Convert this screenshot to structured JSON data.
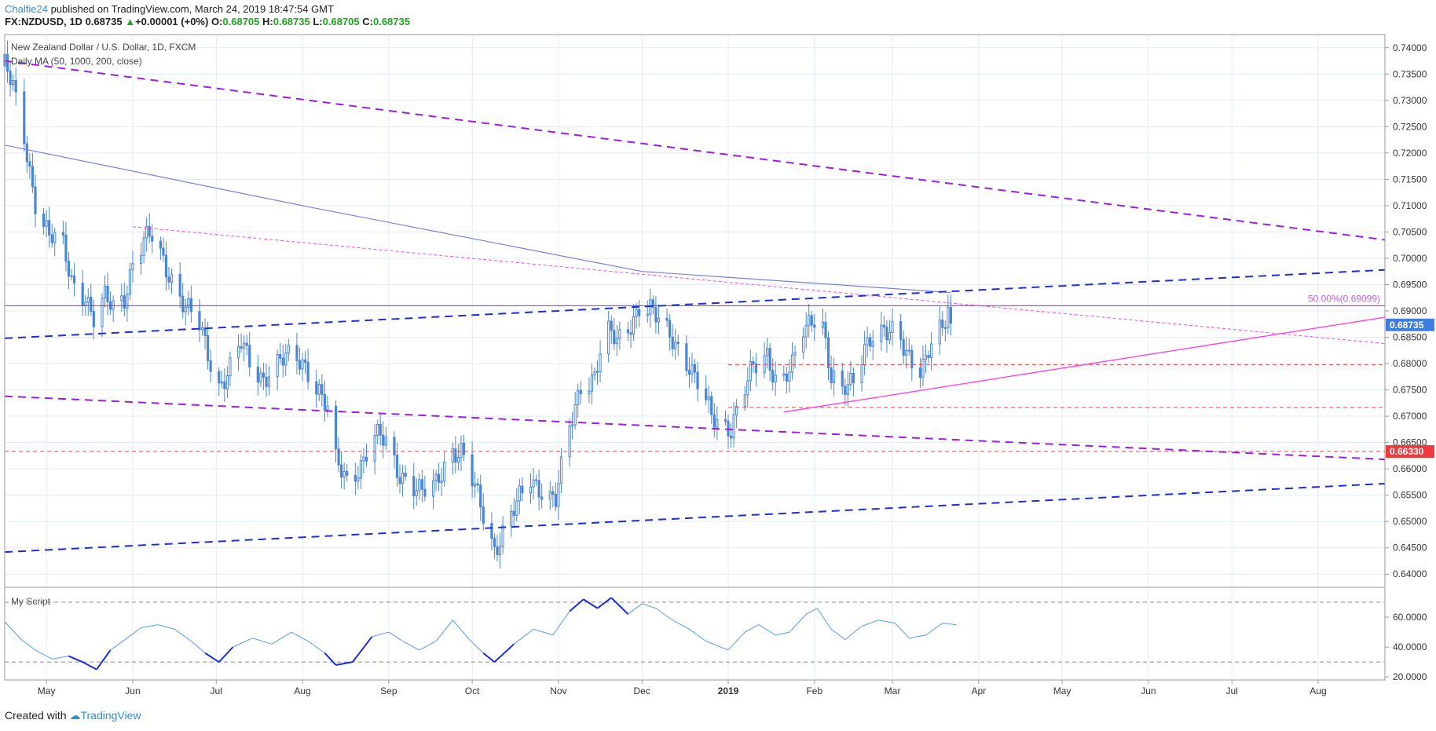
{
  "header": {
    "author": "Chalfie24",
    "published_text": "published on TradingView.com, March 24, 2019 18:47:54 GMT",
    "symbol": "FX:NZDUSD, 1D",
    "last": "0.68735",
    "change": "+0.00001 (+0%)",
    "o_label": "O:",
    "o": "0.68705",
    "h_label": "H:",
    "h": "0.68735",
    "l_label": "L:",
    "l": "0.68705",
    "c_label": "C:",
    "c": "0.68735"
  },
  "legend": {
    "title": "New Zealand Dollar / U.S. Dollar, 1D, FXCM",
    "ma": "Daily MA (50, 1000, 200, close)",
    "script": "My Script"
  },
  "footer": {
    "created_with": "Created with",
    "brand": "TradingView"
  },
  "colors": {
    "candle": "#4a86d8",
    "purple_dash": "#9b1ee6",
    "blue_dash": "#1a2fd8",
    "pink": "#ff44dd",
    "red_dash": "#ef4040",
    "ma_line": "#7b7fe6",
    "fib_line": "#9b1ee6"
  },
  "chart_data": [
    {
      "type": "candlestick",
      "title": "New Zealand Dollar / U.S. Dollar, 1D, FXCM",
      "ylim": [
        0.6375,
        0.7425
      ],
      "y_ticks": [
        "0.74000",
        "0.73500",
        "0.73000",
        "0.72500",
        "0.72000",
        "0.71500",
        "0.71000",
        "0.70500",
        "0.70000",
        "0.69500",
        "0.69000",
        "0.68500",
        "0.68000",
        "0.67500",
        "0.67000",
        "0.66500",
        "0.66000",
        "0.65500",
        "0.65000",
        "0.64500",
        "0.64000"
      ],
      "x_labels": [
        "May",
        "Jun",
        "Jul",
        "Aug",
        "Sep",
        "Oct",
        "Nov",
        "Dec",
        "2019",
        "Feb",
        "Mar",
        "Apr",
        "May",
        "Jun",
        "Jul",
        "Aug"
      ],
      "x_range": [
        "2018-04-16",
        "2019-08-25"
      ],
      "price_path": [
        [
          "2018-04-16",
          0.7365
        ],
        [
          "2018-04-19",
          0.732
        ],
        [
          "2018-04-23",
          0.723
        ],
        [
          "2018-04-27",
          0.711
        ],
        [
          "2018-05-02",
          0.704
        ],
        [
          "2018-05-07",
          0.702
        ],
        [
          "2018-05-10",
          0.696
        ],
        [
          "2018-05-15",
          0.693
        ],
        [
          "2018-05-18",
          0.688
        ],
        [
          "2018-05-22",
          0.692
        ],
        [
          "2018-05-25",
          0.691
        ],
        [
          "2018-05-29",
          0.693
        ],
        [
          "2018-06-01",
          0.699
        ],
        [
          "2018-06-05",
          0.703
        ],
        [
          "2018-06-08",
          0.704
        ],
        [
          "2018-06-13",
          0.6985
        ],
        [
          "2018-06-16",
          0.6955
        ],
        [
          "2018-06-20",
          0.6905
        ],
        [
          "2018-06-25",
          0.687
        ],
        [
          "2018-06-28",
          0.682
        ],
        [
          "2018-07-02",
          0.676
        ],
        [
          "2018-07-06",
          0.679
        ],
        [
          "2018-07-10",
          0.6835
        ],
        [
          "2018-07-14",
          0.679
        ],
        [
          "2018-07-18",
          0.6775
        ],
        [
          "2018-07-22",
          0.68
        ],
        [
          "2018-07-28",
          0.681
        ],
        [
          "2018-08-02",
          0.68
        ],
        [
          "2018-08-07",
          0.675
        ],
        [
          "2018-08-10",
          0.671
        ],
        [
          "2018-08-13",
          0.661
        ],
        [
          "2018-08-17",
          0.658
        ],
        [
          "2018-08-22",
          0.661
        ],
        [
          "2018-08-27",
          0.666
        ],
        [
          "2018-08-31",
          0.665
        ],
        [
          "2018-09-04",
          0.66
        ],
        [
          "2018-09-08",
          0.658
        ],
        [
          "2018-09-13",
          0.655
        ],
        [
          "2018-09-18",
          0.657
        ],
        [
          "2018-09-23",
          0.664
        ],
        [
          "2018-09-27",
          0.663
        ],
        [
          "2018-10-02",
          0.656
        ],
        [
          "2018-10-06",
          0.65
        ],
        [
          "2018-10-09",
          0.645
        ],
        [
          "2018-10-12",
          0.648
        ],
        [
          "2018-10-17",
          0.653
        ],
        [
          "2018-10-22",
          0.658
        ],
        [
          "2018-10-27",
          0.656
        ],
        [
          "2018-10-31",
          0.654
        ],
        [
          "2018-11-04",
          0.665
        ],
        [
          "2018-11-09",
          0.676
        ],
        [
          "2018-11-14",
          0.678
        ],
        [
          "2018-11-18",
          0.686
        ],
        [
          "2018-11-22",
          0.684
        ],
        [
          "2018-11-26",
          0.687
        ],
        [
          "2018-11-30",
          0.691
        ],
        [
          "2018-12-04",
          0.69
        ],
        [
          "2018-12-08",
          0.687
        ],
        [
          "2018-12-12",
          0.685
        ],
        [
          "2018-12-16",
          0.682
        ],
        [
          "2018-12-20",
          0.677
        ],
        [
          "2018-12-26",
          0.67
        ],
        [
          "2019-01-02",
          0.668
        ],
        [
          "2019-01-06",
          0.6735
        ],
        [
          "2019-01-10",
          0.679
        ],
        [
          "2019-01-15",
          0.682
        ],
        [
          "2019-01-19",
          0.676
        ],
        [
          "2019-01-24",
          0.679
        ],
        [
          "2019-01-28",
          0.686
        ],
        [
          "2019-02-01",
          0.6895
        ],
        [
          "2019-02-04",
          0.688
        ],
        [
          "2019-02-07",
          0.677
        ],
        [
          "2019-02-11",
          0.674
        ],
        [
          "2019-02-15",
          0.677
        ],
        [
          "2019-02-19",
          0.684
        ],
        [
          "2019-02-23",
          0.686
        ],
        [
          "2019-02-27",
          0.685
        ],
        [
          "2019-03-02",
          0.686
        ],
        [
          "2019-03-06",
          0.683
        ],
        [
          "2019-03-10",
          0.679
        ],
        [
          "2019-03-13",
          0.68
        ],
        [
          "2019-03-16",
          0.685
        ],
        [
          "2019-03-19",
          0.686
        ],
        [
          "2019-03-21",
          0.691
        ],
        [
          "2019-03-22",
          0.687
        ],
        [
          "2019-03-24",
          0.68735
        ]
      ],
      "moving_average": [
        [
          "2018-04-16",
          0.7215
        ],
        [
          "2018-08-01",
          0.71
        ],
        [
          "2018-12-01",
          0.6975
        ],
        [
          "2019-03-22",
          0.6935
        ]
      ],
      "fib_level": {
        "label": "50.00%(0.69099)",
        "value": 0.69099
      },
      "support_lines": [
        0.6798,
        0.67165
      ],
      "current_price_label": "0.68735",
      "level_label": "0.66330",
      "level_value": 0.6633,
      "trendlines": [
        {
          "kind": "purple_dash",
          "from": [
            "2018-04-16",
            0.7375
          ],
          "to": [
            "2019-08-25",
            0.7035
          ]
        },
        {
          "kind": "purple_dash",
          "from": [
            "2018-04-16",
            0.6738
          ],
          "to": [
            "2019-08-25",
            0.6618
          ]
        },
        {
          "kind": "blue_dash",
          "from": [
            "2018-04-16",
            0.6848
          ],
          "to": [
            "2019-08-25",
            0.6978
          ]
        },
        {
          "kind": "blue_dash",
          "from": [
            "2018-04-16",
            0.6442
          ],
          "to": [
            "2019-08-25",
            0.6572
          ]
        },
        {
          "kind": "pink_dash",
          "from": [
            "2018-06-01",
            0.706
          ],
          "to": [
            "2019-08-25",
            0.6838
          ]
        },
        {
          "kind": "pink_solid",
          "from": [
            "2019-01-21",
            0.6708
          ],
          "to": [
            "2019-08-25",
            0.6888
          ]
        }
      ]
    },
    {
      "type": "line",
      "title": "My Script",
      "ylim": [
        18,
        80
      ],
      "y_ticks": [
        "60.0000",
        "40.0000",
        "20.0000"
      ],
      "overbought": 70,
      "oversold": 30,
      "values": [
        [
          "2018-04-16",
          57
        ],
        [
          "2018-04-22",
          45
        ],
        [
          "2018-04-27",
          38
        ],
        [
          "2018-05-03",
          32
        ],
        [
          "2018-05-09",
          34
        ],
        [
          "2018-05-14",
          30
        ],
        [
          "2018-05-19",
          25
        ],
        [
          "2018-05-24",
          38
        ],
        [
          "2018-05-30",
          46
        ],
        [
          "2018-06-04",
          53
        ],
        [
          "2018-06-10",
          55
        ],
        [
          "2018-06-16",
          52
        ],
        [
          "2018-06-22",
          44
        ],
        [
          "2018-06-27",
          36
        ],
        [
          "2018-07-02",
          30
        ],
        [
          "2018-07-07",
          40
        ],
        [
          "2018-07-14",
          46
        ],
        [
          "2018-07-21",
          42
        ],
        [
          "2018-07-28",
          50
        ],
        [
          "2018-08-03",
          44
        ],
        [
          "2018-08-09",
          36
        ],
        [
          "2018-08-13",
          28
        ],
        [
          "2018-08-19",
          30
        ],
        [
          "2018-08-26",
          47
        ],
        [
          "2018-09-01",
          50
        ],
        [
          "2018-09-06",
          44
        ],
        [
          "2018-09-12",
          38
        ],
        [
          "2018-09-18",
          44
        ],
        [
          "2018-09-24",
          58
        ],
        [
          "2018-09-30",
          45
        ],
        [
          "2018-10-05",
          36
        ],
        [
          "2018-10-09",
          30
        ],
        [
          "2018-10-16",
          42
        ],
        [
          "2018-10-23",
          52
        ],
        [
          "2018-10-30",
          48
        ],
        [
          "2018-11-05",
          64
        ],
        [
          "2018-11-10",
          72
        ],
        [
          "2018-11-15",
          66
        ],
        [
          "2018-11-20",
          73
        ],
        [
          "2018-11-26",
          62
        ],
        [
          "2018-12-01",
          69
        ],
        [
          "2018-12-06",
          66
        ],
        [
          "2018-12-12",
          58
        ],
        [
          "2018-12-18",
          52
        ],
        [
          "2018-12-24",
          44
        ],
        [
          "2019-01-01",
          38
        ],
        [
          "2019-01-07",
          50
        ],
        [
          "2019-01-12",
          55
        ],
        [
          "2019-01-18",
          48
        ],
        [
          "2019-01-23",
          50
        ],
        [
          "2019-01-29",
          62
        ],
        [
          "2019-02-02",
          66
        ],
        [
          "2019-02-07",
          52
        ],
        [
          "2019-02-12",
          45
        ],
        [
          "2019-02-18",
          54
        ],
        [
          "2019-02-24",
          58
        ],
        [
          "2019-03-02",
          56
        ],
        [
          "2019-03-07",
          46
        ],
        [
          "2019-03-13",
          48
        ],
        [
          "2019-03-19",
          56
        ],
        [
          "2019-03-24",
          55
        ]
      ]
    }
  ]
}
